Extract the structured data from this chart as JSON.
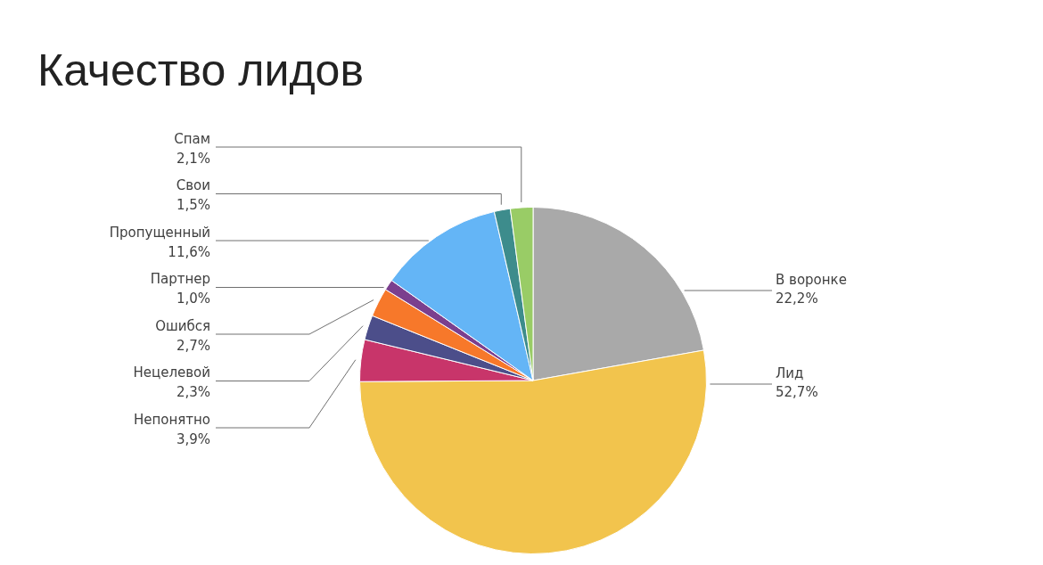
{
  "chart_data": {
    "type": "pie",
    "title": "Качество лидов",
    "categories": [
      "В воронке",
      "Лид",
      "Непонятно",
      "Нецелевой",
      "Ошибся",
      "Партнер",
      "Пропущенный",
      "Свои",
      "Спам"
    ],
    "values": [
      22.2,
      52.7,
      3.9,
      2.3,
      2.7,
      1.0,
      11.6,
      1.5,
      2.1
    ],
    "colors": [
      "#a9a9a9",
      "#f2c44d",
      "#c8356a",
      "#4c4e8a",
      "#f7782a",
      "#7b3f8e",
      "#64b5f6",
      "#3d8c8c",
      "#99cc66"
    ],
    "value_labels": [
      "22,2%",
      "52,7%",
      "3,9%",
      "2,3%",
      "2,7%",
      "1,0%",
      "11,6%",
      "1,5%",
      "2,1%"
    ]
  }
}
